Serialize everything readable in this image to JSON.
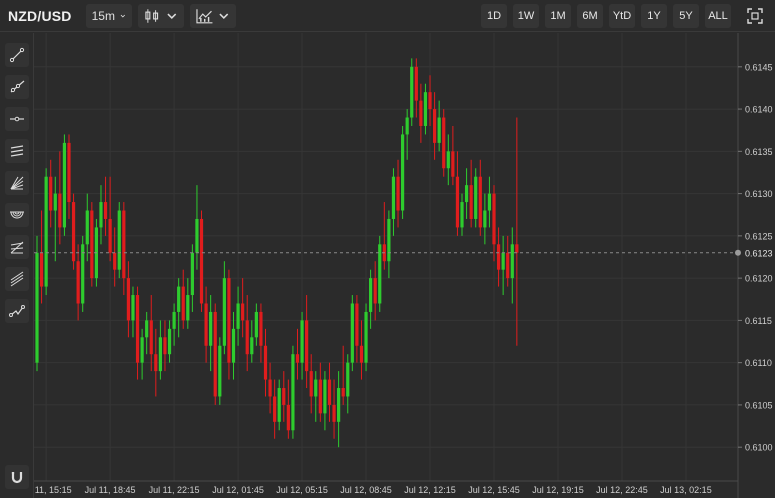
{
  "toolbar": {
    "symbol": "NZD/USD",
    "interval": "15m",
    "chart_style_icon": "candlestick-icon",
    "indicators_icon": "indicators-icon",
    "ranges": [
      "1D",
      "1W",
      "1M",
      "6M",
      "YtD",
      "1Y",
      "5Y",
      "ALL"
    ],
    "fullscreen_icon": "fullscreen-icon"
  },
  "sidebar": {
    "tools": [
      {
        "name": "trend-line-tool",
        "icon": "trend-line-icon"
      },
      {
        "name": "ray-tool",
        "icon": "ray-icon"
      },
      {
        "name": "horizontal-line-tool",
        "icon": "horizontal-line-icon"
      },
      {
        "name": "parallel-channel-tool",
        "icon": "parallel-channel-icon"
      },
      {
        "name": "fib-fan-tool",
        "icon": "fib-fan-icon"
      },
      {
        "name": "fib-arcs-tool",
        "icon": "fib-arcs-icon"
      },
      {
        "name": "fib-retracement-tool",
        "icon": "fib-retracement-icon"
      },
      {
        "name": "pitchfork-tool",
        "icon": "pitchfork-icon"
      },
      {
        "name": "path-tool",
        "icon": "path-icon"
      }
    ],
    "magnet_icon": "magnet-icon"
  },
  "chart_data": {
    "type": "candlestick",
    "title": "",
    "xlabel": "",
    "ylabel": "",
    "ylim": [
      0.6096,
      0.6149
    ],
    "y_ticks": [
      0.61,
      0.6105,
      0.611,
      0.6115,
      0.612,
      0.6125,
      0.613,
      0.6135,
      0.614,
      0.6145
    ],
    "y_tick_labels": [
      "0.6100",
      "0.6105",
      "0.6110",
      "0.6115",
      "0.6120",
      "0.6125",
      "0.6130",
      "0.6135",
      "0.6140",
      "0.6145"
    ],
    "x_tick_labels": [
      "Jul 11, 15:15",
      "Jul 11, 18:45",
      "Jul 11, 22:15",
      "Jul 12, 01:45",
      "Jul 12, 05:15",
      "Jul 12, 08:45",
      "Jul 12, 12:15",
      "Jul 12, 15:45",
      "Jul 12, 19:15",
      "Jul 12, 22:45",
      "Jul 13, 02:15"
    ],
    "x_tick_index": [
      2,
      16,
      30,
      44,
      58,
      72,
      86,
      100,
      114,
      128,
      142
    ],
    "current_price": 0.6123,
    "current_price_label": "0.6123",
    "grid": true,
    "up_color": "#2ecc2e",
    "down_color": "#e01d1d",
    "ohlc": [
      [
        0.611,
        0.6125,
        0.6109,
        0.6123
      ],
      [
        0.6123,
        0.6128,
        0.6117,
        0.6119
      ],
      [
        0.6119,
        0.6133,
        0.6118,
        0.6132
      ],
      [
        0.6132,
        0.6134,
        0.6126,
        0.6128
      ],
      [
        0.6128,
        0.6132,
        0.6122,
        0.613
      ],
      [
        0.613,
        0.6135,
        0.6124,
        0.6126
      ],
      [
        0.6126,
        0.6137,
        0.6125,
        0.6136
      ],
      [
        0.6136,
        0.6137,
        0.6127,
        0.6129
      ],
      [
        0.6129,
        0.613,
        0.6121,
        0.6122
      ],
      [
        0.6122,
        0.6124,
        0.6115,
        0.6117
      ],
      [
        0.6117,
        0.6125,
        0.6116,
        0.6124
      ],
      [
        0.6124,
        0.613,
        0.6122,
        0.6128
      ],
      [
        0.6128,
        0.6129,
        0.6119,
        0.612
      ],
      [
        0.612,
        0.6127,
        0.6119,
        0.6126
      ],
      [
        0.6126,
        0.6131,
        0.6124,
        0.6129
      ],
      [
        0.6129,
        0.6132,
        0.6125,
        0.6127
      ],
      [
        0.6127,
        0.6132,
        0.6122,
        0.6123
      ],
      [
        0.6123,
        0.6126,
        0.6119,
        0.6121
      ],
      [
        0.6121,
        0.6129,
        0.612,
        0.6128
      ],
      [
        0.6128,
        0.6129,
        0.6118,
        0.612
      ],
      [
        0.612,
        0.6122,
        0.6113,
        0.6115
      ],
      [
        0.6115,
        0.6119,
        0.6113,
        0.6118
      ],
      [
        0.6118,
        0.6119,
        0.6108,
        0.611
      ],
      [
        0.611,
        0.6114,
        0.6108,
        0.6113
      ],
      [
        0.6113,
        0.6116,
        0.6111,
        0.6115
      ],
      [
        0.6115,
        0.6118,
        0.6109,
        0.6111
      ],
      [
        0.6111,
        0.6114,
        0.6106,
        0.6109
      ],
      [
        0.6109,
        0.6115,
        0.6108,
        0.6113
      ],
      [
        0.6113,
        0.6115,
        0.6109,
        0.6111
      ],
      [
        0.6111,
        0.6115,
        0.611,
        0.6114
      ],
      [
        0.6114,
        0.6117,
        0.6112,
        0.6116
      ],
      [
        0.6116,
        0.612,
        0.6113,
        0.6119
      ],
      [
        0.6119,
        0.6121,
        0.6114,
        0.6115
      ],
      [
        0.6115,
        0.612,
        0.6114,
        0.6118
      ],
      [
        0.6118,
        0.6124,
        0.6116,
        0.6123
      ],
      [
        0.6123,
        0.6131,
        0.6121,
        0.6127
      ],
      [
        0.6127,
        0.6128,
        0.6116,
        0.6117
      ],
      [
        0.6117,
        0.6119,
        0.611,
        0.6112
      ],
      [
        0.6112,
        0.6118,
        0.6109,
        0.6116
      ],
      [
        0.6116,
        0.6117,
        0.6105,
        0.6106
      ],
      [
        0.6106,
        0.6113,
        0.6105,
        0.6112
      ],
      [
        0.6112,
        0.6122,
        0.6111,
        0.612
      ],
      [
        0.612,
        0.6121,
        0.6108,
        0.611
      ],
      [
        0.611,
        0.6116,
        0.6108,
        0.6114
      ],
      [
        0.6114,
        0.6119,
        0.6112,
        0.6117
      ],
      [
        0.6117,
        0.612,
        0.6113,
        0.6115
      ],
      [
        0.6115,
        0.6118,
        0.6109,
        0.6111
      ],
      [
        0.6111,
        0.6115,
        0.611,
        0.6113
      ],
      [
        0.6113,
        0.6117,
        0.6112,
        0.6116
      ],
      [
        0.6116,
        0.6117,
        0.611,
        0.6112
      ],
      [
        0.6112,
        0.6114,
        0.6106,
        0.6108
      ],
      [
        0.6108,
        0.611,
        0.6104,
        0.6106
      ],
      [
        0.6106,
        0.6108,
        0.6101,
        0.6103
      ],
      [
        0.6103,
        0.6108,
        0.6102,
        0.6107
      ],
      [
        0.6107,
        0.6109,
        0.6103,
        0.6105
      ],
      [
        0.6105,
        0.6108,
        0.6101,
        0.6102
      ],
      [
        0.6102,
        0.6112,
        0.6101,
        0.6111
      ],
      [
        0.6111,
        0.6114,
        0.6108,
        0.611
      ],
      [
        0.611,
        0.6116,
        0.6108,
        0.6115
      ],
      [
        0.6115,
        0.6118,
        0.6107,
        0.6109
      ],
      [
        0.6109,
        0.6111,
        0.6104,
        0.6106
      ],
      [
        0.6106,
        0.6109,
        0.6103,
        0.6108
      ],
      [
        0.6108,
        0.611,
        0.6103,
        0.6104
      ],
      [
        0.6104,
        0.6109,
        0.6102,
        0.6108
      ],
      [
        0.6108,
        0.611,
        0.6103,
        0.6105
      ],
      [
        0.6105,
        0.6108,
        0.6101,
        0.6103
      ],
      [
        0.6103,
        0.6109,
        0.61,
        0.6107
      ],
      [
        0.6107,
        0.6112,
        0.6105,
        0.6106
      ],
      [
        0.6106,
        0.6111,
        0.6104,
        0.611
      ],
      [
        0.611,
        0.6118,
        0.6109,
        0.6117
      ],
      [
        0.6117,
        0.6118,
        0.611,
        0.6112
      ],
      [
        0.6112,
        0.6115,
        0.6108,
        0.611
      ],
      [
        0.611,
        0.6117,
        0.6109,
        0.6116
      ],
      [
        0.6116,
        0.6121,
        0.6114,
        0.612
      ],
      [
        0.612,
        0.6122,
        0.6115,
        0.6117
      ],
      [
        0.6117,
        0.6125,
        0.6116,
        0.6124
      ],
      [
        0.6124,
        0.6129,
        0.6121,
        0.6122
      ],
      [
        0.6122,
        0.6128,
        0.612,
        0.6127
      ],
      [
        0.6127,
        0.6133,
        0.6125,
        0.6132
      ],
      [
        0.6132,
        0.6134,
        0.6126,
        0.6128
      ],
      [
        0.6128,
        0.6138,
        0.6127,
        0.6137
      ],
      [
        0.6137,
        0.614,
        0.6134,
        0.6139
      ],
      [
        0.6139,
        0.6146,
        0.6138,
        0.6145
      ],
      [
        0.6145,
        0.6146,
        0.6139,
        0.6141
      ],
      [
        0.6141,
        0.6143,
        0.6136,
        0.6138
      ],
      [
        0.6138,
        0.6143,
        0.6137,
        0.6142
      ],
      [
        0.6142,
        0.6144,
        0.6138,
        0.614
      ],
      [
        0.614,
        0.6142,
        0.6134,
        0.6136
      ],
      [
        0.6136,
        0.6141,
        0.6135,
        0.6139
      ],
      [
        0.6139,
        0.614,
        0.6132,
        0.6133
      ],
      [
        0.6133,
        0.6137,
        0.6131,
        0.6135
      ],
      [
        0.6135,
        0.6138,
        0.6131,
        0.6132
      ],
      [
        0.6132,
        0.6135,
        0.6125,
        0.6126
      ],
      [
        0.6126,
        0.613,
        0.6125,
        0.6129
      ],
      [
        0.6129,
        0.6133,
        0.6127,
        0.6131
      ],
      [
        0.6131,
        0.6134,
        0.6126,
        0.6127
      ],
      [
        0.6127,
        0.6133,
        0.6126,
        0.6132
      ],
      [
        0.6132,
        0.6134,
        0.6125,
        0.6126
      ],
      [
        0.6126,
        0.613,
        0.6124,
        0.6128
      ],
      [
        0.6128,
        0.6132,
        0.6126,
        0.613
      ],
      [
        0.613,
        0.6131,
        0.6122,
        0.6124
      ],
      [
        0.6124,
        0.6126,
        0.6119,
        0.6121
      ],
      [
        0.6121,
        0.6125,
        0.6118,
        0.6123
      ],
      [
        0.6123,
        0.6125,
        0.6119,
        0.612
      ],
      [
        0.612,
        0.6126,
        0.6117,
        0.6124
      ],
      [
        0.6124,
        0.6139,
        0.6112,
        0.6123
      ]
    ]
  }
}
